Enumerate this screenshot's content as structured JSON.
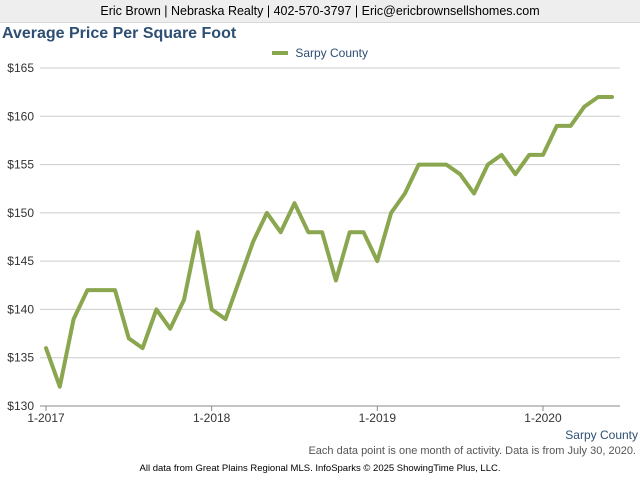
{
  "header": {
    "text": "Eric Brown | Nebraska Realty | 402-570-3797 | Eric@ericbrownsellshomes.com"
  },
  "chart_data": {
    "type": "line",
    "title": "Average Price Per Square Foot",
    "xlabel": "",
    "ylabel": "",
    "ylim": [
      130,
      165
    ],
    "yticks": [
      130,
      135,
      140,
      145,
      150,
      155,
      160,
      165
    ],
    "ytick_labels": [
      "$130",
      "$135",
      "$140",
      "$145",
      "$150",
      "$155",
      "$160",
      "$165"
    ],
    "x_range": [
      "1-2017",
      "6-2020"
    ],
    "xticks": [
      "1-2017",
      "1-2018",
      "1-2019",
      "1-2020"
    ],
    "grid": "horizontal",
    "legend": "top-center",
    "series": [
      {
        "name": "Sarpy County",
        "color": "#8aa64e",
        "values": [
          136,
          132,
          139,
          142,
          142,
          142,
          137,
          136,
          140,
          138,
          141,
          148,
          140,
          139,
          143,
          147,
          150,
          148,
          151,
          148,
          148,
          143,
          148,
          148,
          145,
          150,
          152,
          155,
          155,
          155,
          154,
          152,
          155,
          156,
          154,
          156,
          156,
          159,
          159,
          161,
          162,
          162
        ]
      }
    ]
  },
  "series_label": "Sarpy County",
  "note": "Each data point is one month of activity. Data is from July 30, 2020.",
  "footer": "All data from Great Plains Regional MLS. InfoSparks © 2025 ShowingTime Plus, LLC."
}
